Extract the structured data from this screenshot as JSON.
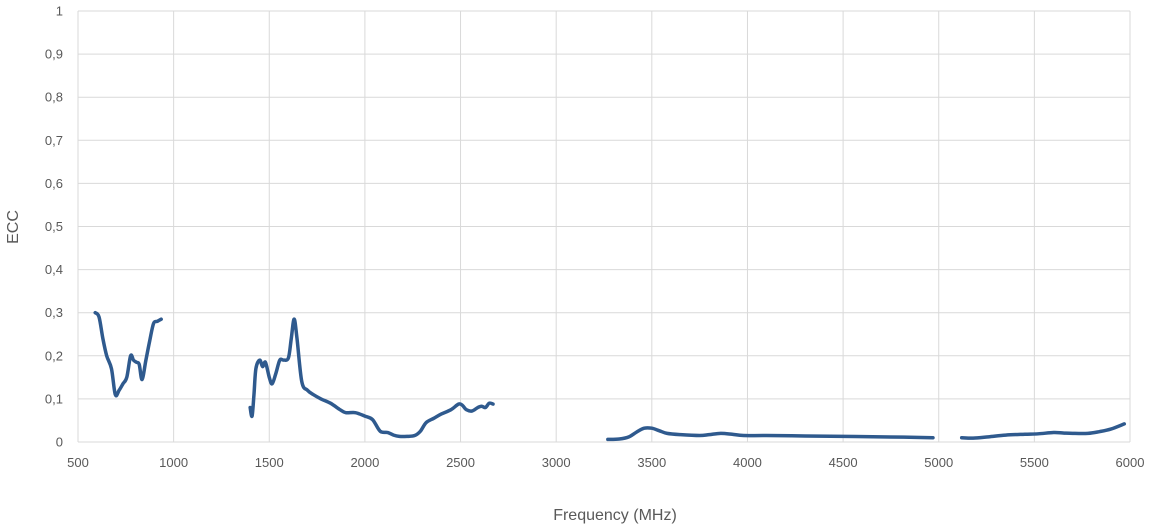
{
  "chart_data": {
    "type": "line",
    "title": "",
    "xlabel": "Frequency (MHz)",
    "ylabel": "ECC",
    "xlim": [
      500,
      6000
    ],
    "ylim": [
      0,
      1
    ],
    "grid": true,
    "color": "#2f5a8e",
    "x_ticks": [
      "500",
      "1000",
      "1500",
      "2000",
      "2500",
      "3000",
      "3500",
      "4000",
      "4500",
      "5000",
      "5500",
      "6000"
    ],
    "y_ticks": [
      "0",
      "0,1",
      "0,2",
      "0,3",
      "0,4",
      "0,5",
      "0,6",
      "0,7",
      "0,8",
      "0,9",
      "1"
    ],
    "series": [
      {
        "segments": [
          [
            [
              590,
              0.3
            ],
            [
              610,
              0.29
            ],
            [
              630,
              0.24
            ],
            [
              650,
              0.2
            ],
            [
              675,
              0.17
            ],
            [
              695,
              0.11
            ],
            [
              715,
              0.12
            ],
            [
              735,
              0.135
            ],
            [
              755,
              0.15
            ],
            [
              775,
              0.2
            ],
            [
              790,
              0.19
            ],
            [
              805,
              0.185
            ],
            [
              820,
              0.18
            ],
            [
              835,
              0.145
            ],
            [
              855,
              0.19
            ],
            [
              875,
              0.235
            ],
            [
              895,
              0.275
            ],
            [
              915,
              0.28
            ],
            [
              935,
              0.285
            ]
          ],
          [
            [
              1400,
              0.08
            ],
            [
              1410,
              0.06
            ],
            [
              1420,
              0.11
            ],
            [
              1430,
              0.17
            ],
            [
              1450,
              0.19
            ],
            [
              1465,
              0.175
            ],
            [
              1480,
              0.185
            ],
            [
              1500,
              0.15
            ],
            [
              1515,
              0.135
            ],
            [
              1535,
              0.16
            ],
            [
              1555,
              0.19
            ],
            [
              1575,
              0.19
            ],
            [
              1600,
              0.195
            ],
            [
              1615,
              0.24
            ],
            [
              1630,
              0.285
            ],
            [
              1645,
              0.24
            ],
            [
              1670,
              0.14
            ],
            [
              1700,
              0.12
            ],
            [
              1730,
              0.11
            ],
            [
              1770,
              0.1
            ],
            [
              1820,
              0.09
            ],
            [
              1870,
              0.075
            ],
            [
              1900,
              0.068
            ],
            [
              1950,
              0.068
            ],
            [
              2000,
              0.06
            ],
            [
              2040,
              0.052
            ],
            [
              2080,
              0.025
            ],
            [
              2120,
              0.022
            ],
            [
              2150,
              0.016
            ],
            [
              2180,
              0.013
            ],
            [
              2220,
              0.013
            ],
            [
              2260,
              0.015
            ],
            [
              2290,
              0.025
            ],
            [
              2320,
              0.045
            ],
            [
              2360,
              0.055
            ],
            [
              2400,
              0.065
            ],
            [
              2450,
              0.075
            ],
            [
              2490,
              0.088
            ],
            [
              2510,
              0.085
            ],
            [
              2530,
              0.075
            ],
            [
              2560,
              0.072
            ],
            [
              2590,
              0.08
            ],
            [
              2610,
              0.083
            ],
            [
              2630,
              0.08
            ],
            [
              2650,
              0.09
            ],
            [
              2670,
              0.088
            ]
          ],
          [
            [
              3270,
              0.006
            ],
            [
              3330,
              0.007
            ],
            [
              3380,
              0.012
            ],
            [
              3420,
              0.023
            ],
            [
              3460,
              0.032
            ],
            [
              3500,
              0.032
            ],
            [
              3540,
              0.026
            ],
            [
              3580,
              0.02
            ],
            [
              3650,
              0.017
            ],
            [
              3750,
              0.015
            ],
            [
              3800,
              0.017
            ],
            [
              3860,
              0.02
            ],
            [
              3920,
              0.018
            ],
            [
              3980,
              0.015
            ],
            [
              4100,
              0.015
            ],
            [
              4300,
              0.014
            ],
            [
              4500,
              0.013
            ],
            [
              4700,
              0.012
            ],
            [
              4970,
              0.01
            ]
          ],
          [
            [
              5120,
              0.01
            ],
            [
              5180,
              0.009
            ],
            [
              5260,
              0.012
            ],
            [
              5350,
              0.016
            ],
            [
              5450,
              0.018
            ],
            [
              5520,
              0.019
            ],
            [
              5600,
              0.022
            ],
            [
              5650,
              0.021
            ],
            [
              5700,
              0.02
            ],
            [
              5780,
              0.02
            ],
            [
              5840,
              0.024
            ],
            [
              5900,
              0.03
            ],
            [
              5970,
              0.042
            ]
          ]
        ]
      }
    ]
  }
}
